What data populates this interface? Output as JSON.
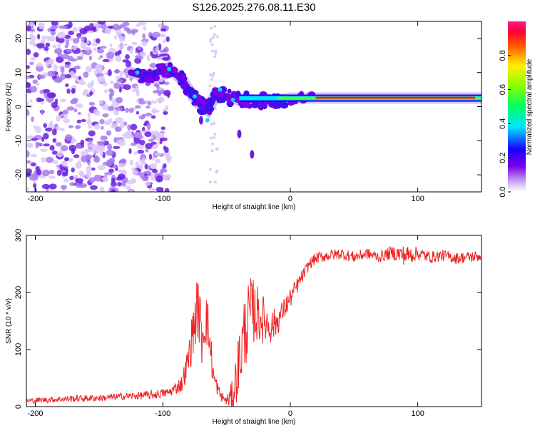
{
  "title": "S126.2025.276.08.11.E30",
  "colors": {
    "snr_line": "#ee2222",
    "spec_purple": "#6a00e8",
    "spec_light": "#c9a8f5",
    "axis": "#000000"
  },
  "chart_data": [
    {
      "type": "heatmap",
      "name": "spectrogram",
      "xlabel": "Height of straight line (km)",
      "ylabel": "Frequency (Hz)",
      "xlim": [
        -207,
        150
      ],
      "ylim": [
        -25,
        25
      ],
      "xticks": [
        -200,
        -100,
        0,
        100
      ],
      "xtick_labels": [
        "-200",
        "-100",
        "0",
        "100"
      ],
      "yticks": [
        -20,
        -10,
        0,
        10,
        20
      ],
      "ytick_labels": [
        "-20",
        "-10",
        "0",
        "10",
        "20"
      ],
      "ridge": {
        "x": [
          -125,
          -115,
          -105,
          -95,
          -85,
          -78,
          -72,
          -65,
          -58,
          -50,
          -40,
          -30,
          -20,
          -10,
          0,
          20,
          40,
          60,
          80,
          100,
          120,
          150
        ],
        "y": [
          10,
          9,
          10,
          11,
          8,
          4,
          1,
          -1,
          4,
          3,
          2,
          2,
          1.5,
          2,
          2.5,
          2.5,
          2.5,
          2.5,
          2.5,
          2.5,
          2.5,
          2.5
        ]
      },
      "colorbar": {
        "label": "Normalized spectral amplitude",
        "range": [
          0,
          1
        ],
        "ticks": [
          0.0,
          0.2,
          0.4,
          0.6,
          0.8
        ],
        "tick_labels": [
          "0.0",
          "0.2",
          "0.4",
          "0.6",
          "0.8"
        ]
      }
    },
    {
      "type": "line",
      "name": "snr",
      "xlabel": "Height of straight line (km)",
      "ylabel": "SNR (10 * v/v)",
      "xlim": [
        -207,
        150
      ],
      "ylim": [
        0,
        300
      ],
      "xticks": [
        -200,
        -100,
        0,
        100
      ],
      "xtick_labels": [
        "-200",
        "-100",
        "0",
        "100"
      ],
      "yticks": [
        0,
        100,
        200,
        300
      ],
      "ytick_labels": [
        "0",
        "100",
        "200",
        "300"
      ],
      "series": [
        {
          "name": "SNR",
          "x": [
            -207,
            -190,
            -170,
            -150,
            -130,
            -110,
            -95,
            -85,
            -80,
            -75,
            -72,
            -70,
            -68,
            -66,
            -64,
            -62,
            -60,
            -55,
            -50,
            -45,
            -40,
            -35,
            -30,
            -25,
            -20,
            -15,
            -10,
            -5,
            0,
            5,
            10,
            15,
            20,
            30,
            40,
            50,
            60,
            70,
            80,
            90,
            100,
            110,
            120,
            130,
            140,
            150
          ],
          "y": [
            10,
            12,
            14,
            15,
            18,
            20,
            25,
            40,
            80,
            150,
            180,
            120,
            140,
            160,
            130,
            90,
            50,
            20,
            10,
            20,
            80,
            140,
            170,
            160,
            150,
            140,
            150,
            170,
            190,
            210,
            230,
            250,
            260,
            265,
            268,
            262,
            268,
            262,
            270,
            265,
            268,
            262,
            265,
            260,
            262,
            264
          ],
          "noise_amplitude": [
            5,
            5,
            6,
            6,
            6,
            8,
            8,
            15,
            30,
            50,
            60,
            55,
            55,
            50,
            45,
            35,
            20,
            10,
            8,
            30,
            60,
            70,
            60,
            50,
            40,
            30,
            25,
            20,
            18,
            15,
            12,
            10,
            10,
            10,
            10,
            10,
            10,
            10,
            12,
            18,
            12,
            10,
            10,
            10,
            10,
            10
          ]
        }
      ]
    }
  ]
}
